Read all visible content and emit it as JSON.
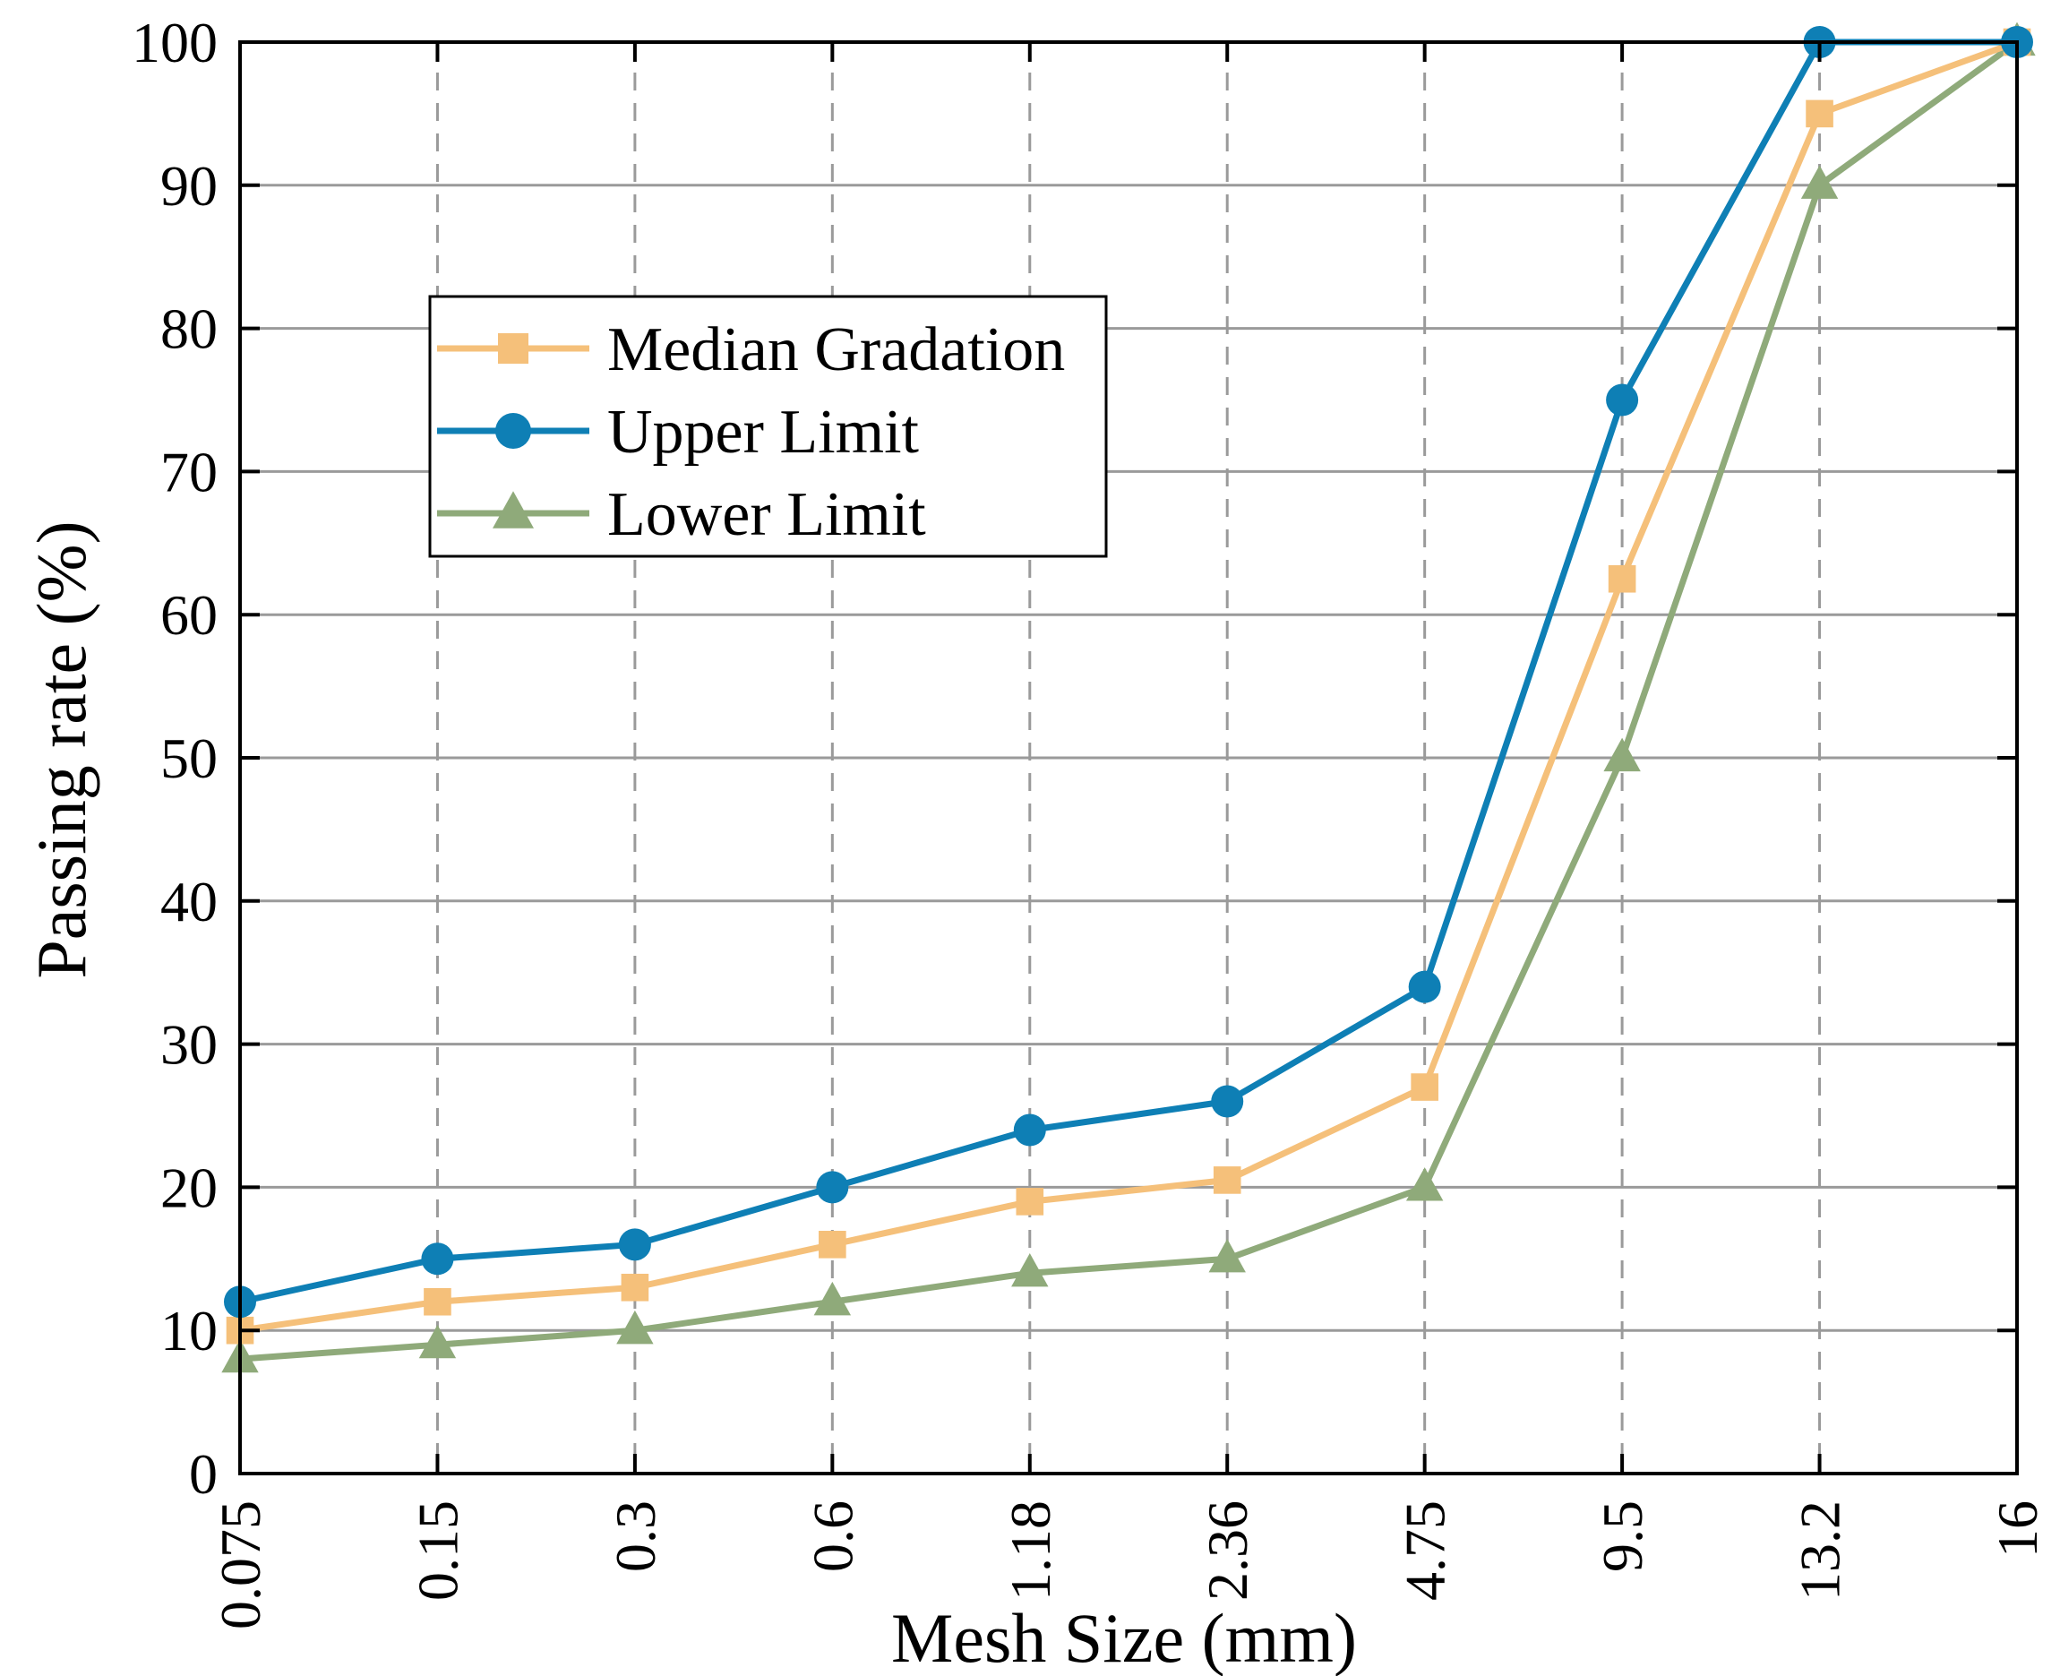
{
  "chart_data": {
    "type": "line",
    "title": "",
    "xlabel": "Mesh Size (mm)",
    "ylabel": "Passing rate (%)",
    "categories": [
      "0.075",
      "0.15",
      "0.3",
      "0.6",
      "1.18",
      "2.36",
      "4.75",
      "9.5",
      "13.2",
      "16"
    ],
    "ylim": [
      0,
      100
    ],
    "yticks": [
      "0",
      "10",
      "20",
      "30",
      "40",
      "50",
      "60",
      "70",
      "80",
      "90",
      "100"
    ],
    "grid": true,
    "legend_position": "top-left",
    "series": [
      {
        "name": "Median Gradation",
        "marker": "square",
        "color": "#F5C07A",
        "values": [
          10,
          12,
          13,
          16,
          19,
          20.5,
          27,
          62.5,
          95,
          100
        ]
      },
      {
        "name": "Upper Limit",
        "marker": "circle",
        "color": "#0E7FB5",
        "values": [
          12,
          15,
          16,
          20,
          24,
          26,
          34,
          75,
          100,
          100
        ]
      },
      {
        "name": "Lower Limit",
        "marker": "triangle",
        "color": "#8FAA7A",
        "values": [
          8,
          9,
          10,
          12,
          14,
          15,
          20,
          50,
          90,
          100
        ]
      }
    ]
  }
}
